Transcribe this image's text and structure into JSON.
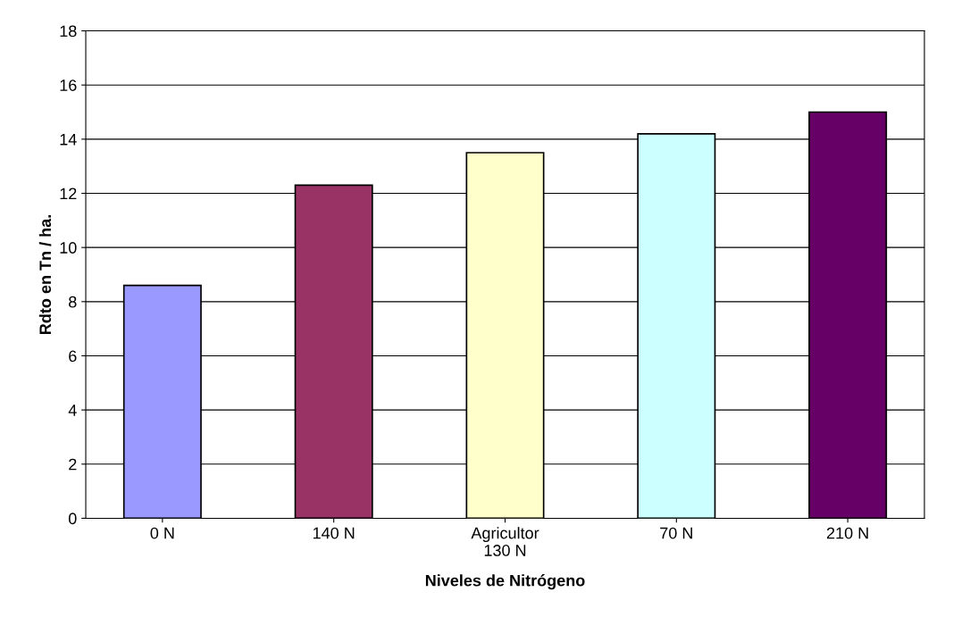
{
  "chart_data": {
    "type": "bar",
    "xlabel": "Niveles de Nitrógeno",
    "ylabel": "Rdto en Tn / ha.",
    "categories": [
      "0 N",
      "140 N",
      "Agricultor\n130 N",
      "70 N",
      "210 N"
    ],
    "values": [
      8.6,
      12.3,
      13.5,
      14.2,
      15.0
    ],
    "colors": [
      "#9999ff",
      "#993366",
      "#ffffcc",
      "#ccffff",
      "#660066"
    ],
    "ylim": [
      0,
      18
    ],
    "yticks": [
      0,
      2,
      4,
      6,
      8,
      10,
      12,
      14,
      16,
      18
    ],
    "grid": "y"
  }
}
